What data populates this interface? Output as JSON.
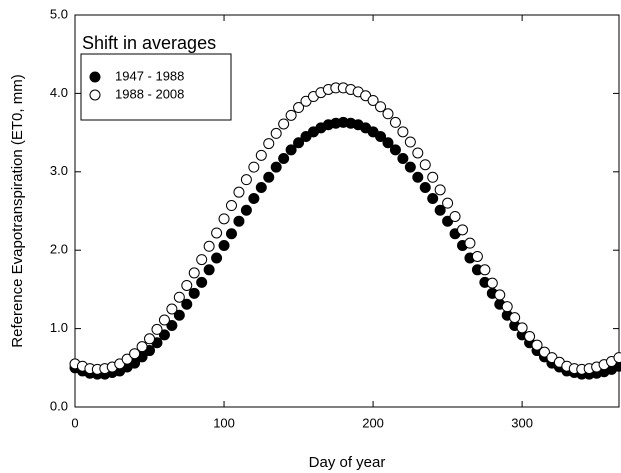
{
  "chart_data": {
    "type": "scatter",
    "annotation": "Shift in averages",
    "x_label": "Day of year",
    "y_label": "Reference Evapotranspiration (ET0, mm)",
    "xlim": [
      0,
      365
    ],
    "ylim": [
      0,
      5
    ],
    "xticks": [
      0,
      100,
      200,
      300
    ],
    "yticks": [
      {
        "value": 0,
        "label": "0.0"
      },
      {
        "value": 1,
        "label": "1.0"
      },
      {
        "value": 2,
        "label": "2.0"
      },
      {
        "value": 3,
        "label": "3.0"
      },
      {
        "value": 4,
        "label": "4.0"
      },
      {
        "value": 5,
        "label": "5.0"
      }
    ],
    "legend": "top-left",
    "x": [
      0,
      5,
      10,
      15,
      20,
      25,
      30,
      35,
      40,
      45,
      50,
      55,
      60,
      65,
      70,
      75,
      80,
      85,
      90,
      95,
      100,
      105,
      110,
      115,
      120,
      125,
      130,
      135,
      140,
      145,
      150,
      155,
      160,
      165,
      170,
      175,
      180,
      185,
      190,
      195,
      200,
      205,
      210,
      215,
      220,
      225,
      230,
      235,
      240,
      245,
      250,
      255,
      260,
      265,
      270,
      275,
      280,
      285,
      290,
      295,
      300,
      305,
      310,
      315,
      320,
      325,
      330,
      335,
      340,
      345,
      350,
      355,
      360,
      365
    ],
    "series": [
      {
        "name": "1947 - 1988",
        "color": "#000000",
        "stroke": "#000000",
        "values": [
          0.5,
          0.46,
          0.43,
          0.42,
          0.42,
          0.44,
          0.46,
          0.51,
          0.56,
          0.64,
          0.72,
          0.82,
          0.92,
          1.04,
          1.17,
          1.31,
          1.45,
          1.59,
          1.75,
          1.9,
          2.06,
          2.21,
          2.37,
          2.51,
          2.66,
          2.8,
          2.93,
          3.06,
          3.17,
          3.28,
          3.37,
          3.45,
          3.51,
          3.56,
          3.6,
          3.62,
          3.63,
          3.62,
          3.6,
          3.56,
          3.51,
          3.45,
          3.37,
          3.28,
          3.17,
          3.06,
          2.93,
          2.8,
          2.66,
          2.51,
          2.37,
          2.21,
          2.06,
          1.9,
          1.75,
          1.59,
          1.45,
          1.31,
          1.17,
          1.04,
          0.92,
          0.82,
          0.72,
          0.64,
          0.56,
          0.51,
          0.46,
          0.44,
          0.42,
          0.42,
          0.43,
          0.45,
          0.48,
          0.52
        ]
      },
      {
        "name": "1988 - 2008",
        "color": "#ffffff",
        "stroke": "#000000",
        "values": [
          0.55,
          0.52,
          0.49,
          0.48,
          0.49,
          0.51,
          0.55,
          0.61,
          0.68,
          0.77,
          0.87,
          0.99,
          1.11,
          1.25,
          1.4,
          1.55,
          1.71,
          1.88,
          2.05,
          2.22,
          2.4,
          2.57,
          2.74,
          2.9,
          3.06,
          3.21,
          3.36,
          3.49,
          3.61,
          3.72,
          3.82,
          3.9,
          3.96,
          4.01,
          4.05,
          4.07,
          4.07,
          4.05,
          4.02,
          3.97,
          3.91,
          3.83,
          3.74,
          3.63,
          3.51,
          3.38,
          3.24,
          3.09,
          2.93,
          2.77,
          2.6,
          2.43,
          2.26,
          2.09,
          1.92,
          1.75,
          1.58,
          1.43,
          1.28,
          1.14,
          1.01,
          0.9,
          0.79,
          0.7,
          0.63,
          0.57,
          0.52,
          0.49,
          0.48,
          0.49,
          0.51,
          0.54,
          0.58,
          0.63
        ]
      }
    ]
  }
}
